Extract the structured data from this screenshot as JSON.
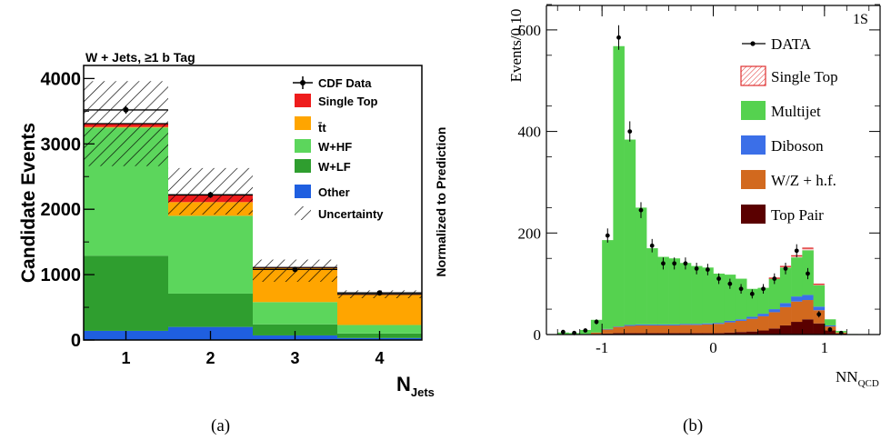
{
  "colors": {
    "cdf": {
      "other": "#1f5fe0",
      "wlf": "#2f9e2f",
      "whf": "#5cd65c",
      "ttbar": "#ffa500",
      "single_top": "#ee1c1c",
      "hatch": "#000000"
    },
    "qcd": {
      "top_pair": "#5a0000",
      "wz_hf": "#d2691e",
      "diboson": "#3b6fe8",
      "multijet": "#55d24f",
      "single_top": "#e03030"
    }
  },
  "captions": {
    "a": "(a)",
    "b": "(b)"
  },
  "chart_data": [
    {
      "type": "bar",
      "stacked": true,
      "title": "W + Jets, ≥1 b Tag",
      "xlabel": "N",
      "xlabel_sub": "Jets",
      "ylabel": "Candidate Events",
      "right_label": "Normalized to Prediction",
      "categories": [
        "1",
        "2",
        "3",
        "4"
      ],
      "ylim": [
        0,
        4200
      ],
      "yticks": [
        "0",
        "1000",
        "2000",
        "3000",
        "4000"
      ],
      "series": [
        {
          "name": "Other",
          "color_key": "other",
          "values": [
            140,
            200,
            70,
            30
          ]
        },
        {
          "name": "W+LF",
          "color_key": "wlf",
          "values": [
            1150,
            510,
            170,
            70
          ]
        },
        {
          "name": "W+HF",
          "color_key": "whf",
          "values": [
            1960,
            1190,
            340,
            130
          ]
        },
        {
          "name": "t̄t",
          "color_key": "ttbar",
          "values": [
            10,
            210,
            520,
            460
          ]
        },
        {
          "name": "Single Top",
          "color_key": "single_top",
          "values": [
            50,
            110,
            10,
            10
          ]
        }
      ],
      "uncertainty": {
        "name": "Uncertainty",
        "low": [
          2660,
          1920,
          890,
          640
        ],
        "high": [
          3960,
          2630,
          1230,
          760
        ]
      },
      "data": {
        "name": "CDF Data",
        "values": [
          3520,
          2220,
          1080,
          720
        ]
      }
    },
    {
      "type": "bar",
      "stacked": true,
      "xlabel": "NN",
      "xlabel_sub": "QCD",
      "ylabel": "Events/0.10",
      "label_1s": "1S",
      "xlim": [
        -1.5,
        1.5
      ],
      "ylim": [
        0,
        700
      ],
      "xticks": [
        "-1",
        "0",
        "1"
      ],
      "yticks": [
        "0",
        "200",
        "400",
        "600"
      ],
      "bin_edges": [
        -1.4,
        -1.3,
        -1.2,
        -1.1,
        -1.0,
        -0.9,
        -0.8,
        -0.7,
        -0.6,
        -0.5,
        -0.4,
        -0.3,
        -0.2,
        -0.1,
        0.0,
        0.1,
        0.2,
        0.3,
        0.4,
        0.5,
        0.6,
        0.7,
        0.8,
        0.9,
        1.0,
        1.1,
        1.2,
        1.3
      ],
      "series": [
        {
          "name": "Top Pair",
          "color_key": "top_pair",
          "values": [
            0,
            0,
            0,
            1,
            2,
            3,
            3,
            3,
            3,
            3,
            3,
            3,
            3,
            3,
            3,
            4,
            5,
            6,
            8,
            12,
            18,
            25,
            30,
            22,
            8,
            2,
            0
          ]
        },
        {
          "name": "W/Z + h.f.",
          "color_key": "wz_hf",
          "values": [
            0,
            0,
            1,
            3,
            8,
            12,
            14,
            15,
            15,
            15,
            15,
            16,
            16,
            17,
            18,
            20,
            22,
            25,
            28,
            32,
            36,
            40,
            38,
            26,
            8,
            2,
            0
          ]
        },
        {
          "name": "Diboson",
          "color_key": "diboson",
          "values": [
            0,
            0,
            0,
            0,
            1,
            1,
            2,
            2,
            2,
            2,
            2,
            2,
            2,
            2,
            2,
            3,
            3,
            4,
            5,
            6,
            8,
            10,
            10,
            7,
            2,
            0,
            0
          ]
        },
        {
          "name": "Multijet",
          "color_key": "multijet",
          "values": [
            4,
            3,
            8,
            25,
            175,
            552,
            365,
            230,
            150,
            133,
            130,
            120,
            114,
            110,
            97,
            91,
            80,
            55,
            51,
            60,
            70,
            77,
            88,
            42,
            12,
            3,
            1
          ]
        },
        {
          "name": "Single Top",
          "color_key": "single_top",
          "values": [
            0,
            0,
            0,
            0,
            0,
            0,
            0,
            0,
            0,
            0,
            0,
            0,
            0,
            0,
            0,
            0,
            0,
            0,
            0,
            1,
            2,
            3,
            4,
            2,
            0,
            0,
            0
          ]
        }
      ],
      "data": {
        "name": "DATA",
        "x": [
          -1.35,
          -1.25,
          -1.15,
          -1.05,
          -0.95,
          -0.85,
          -0.75,
          -0.65,
          -0.55,
          -0.45,
          -0.35,
          -0.25,
          -0.15,
          -0.05,
          0.05,
          0.15,
          0.25,
          0.35,
          0.45,
          0.55,
          0.65,
          0.75,
          0.85,
          0.95,
          1.05,
          1.15
        ],
        "values": [
          5,
          3,
          8,
          25,
          195,
          585,
          400,
          245,
          175,
          140,
          140,
          140,
          130,
          128,
          110,
          100,
          90,
          80,
          90,
          110,
          130,
          165,
          120,
          40,
          10,
          3
        ]
      },
      "legend_order": [
        "DATA",
        "Single Top",
        "Multijet",
        "Diboson",
        "W/Z + h.f.",
        "Top Pair"
      ]
    }
  ]
}
